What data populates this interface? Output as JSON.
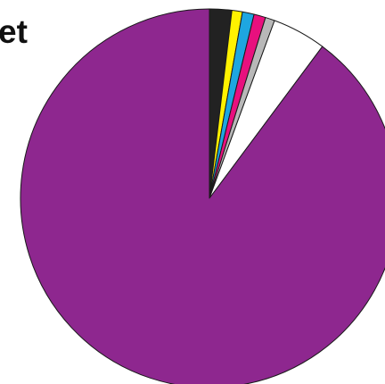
{
  "chart_data": {
    "type": "pie",
    "title": "et",
    "start_angle_deg": 0,
    "direction": "clockwise",
    "slices": [
      {
        "value": 1.9,
        "color": "#222222"
      },
      {
        "value": 0.9,
        "color": "#fff200"
      },
      {
        "value": 1.0,
        "color": "#1ea6e0"
      },
      {
        "value": 1.0,
        "color": "#e8107e"
      },
      {
        "value": 0.8,
        "color": "#b8b8b8"
      },
      {
        "value": 4.6,
        "color": "#ffffff"
      },
      {
        "value": 89.8,
        "color": "#8e278f"
      }
    ]
  }
}
